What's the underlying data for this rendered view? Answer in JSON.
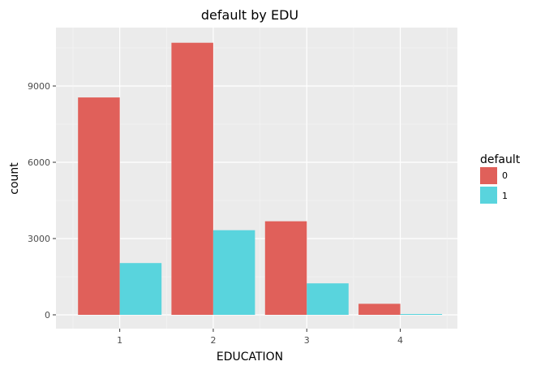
{
  "chart_data": {
    "type": "bar",
    "title": "default by EDU",
    "xlabel": "EDUCATION",
    "ylabel": "count",
    "categories": [
      "1",
      "2",
      "3",
      "4"
    ],
    "series": [
      {
        "name": "0",
        "values": [
          8549,
          10700,
          3680,
          435
        ],
        "color": "#E0605A"
      },
      {
        "name": "1",
        "values": [
          2036,
          3330,
          1237,
          33
        ],
        "color": "#59D4DD"
      }
    ],
    "ylim": [
      0,
      11000
    ],
    "yticks": [
      0,
      3000,
      6000,
      9000
    ],
    "legend": {
      "title": "default",
      "position": "right"
    },
    "grid": true,
    "panel_background": "#EBEBEB"
  }
}
